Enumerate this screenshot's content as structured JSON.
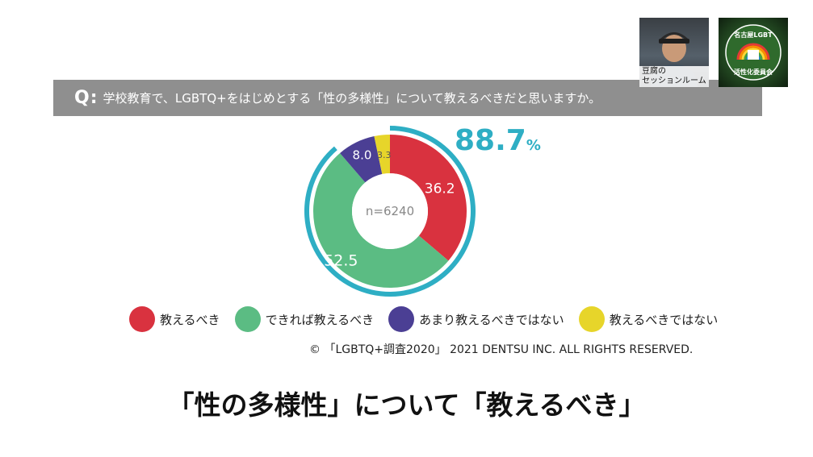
{
  "question": {
    "prefix": "Q:",
    "text": "学校教育で、LGBTQ+をはじめとする「性の多様性」について教えるべきだと思いますか。"
  },
  "participants": [
    {
      "label": "豆腐の\nセッションルーム"
    },
    {
      "logo_top": "名古屋LGBT",
      "logo_bottom": "活性化委員会"
    }
  ],
  "highlight": {
    "value": "88.7",
    "unit": "%",
    "color": "#2eaec4"
  },
  "chart_data": {
    "type": "pie",
    "variant": "donut",
    "center_label": "n=6240",
    "categories": [
      "教えるべき",
      "できれば教えるべき",
      "あまり教えるべきではない",
      "教えるべきではない"
    ],
    "values": [
      36.2,
      52.5,
      8.0,
      3.3
    ],
    "value_labels": [
      "36.2",
      "52.5",
      "8.0",
      "3.3"
    ],
    "colors": [
      "#d9323f",
      "#5bbc83",
      "#4b3f94",
      "#e7d52a"
    ],
    "highlight_ring": {
      "covers": [
        "教えるべき",
        "できれば教えるべき"
      ],
      "total": 88.7,
      "color": "#2eaec4"
    },
    "legend_position": "bottom"
  },
  "copyright": "© 「LGBTQ+調査2020」 2021 DENTSU INC. ALL RIGHTS RESERVED.",
  "caption": "「性の多様性」について「教えるべき」"
}
